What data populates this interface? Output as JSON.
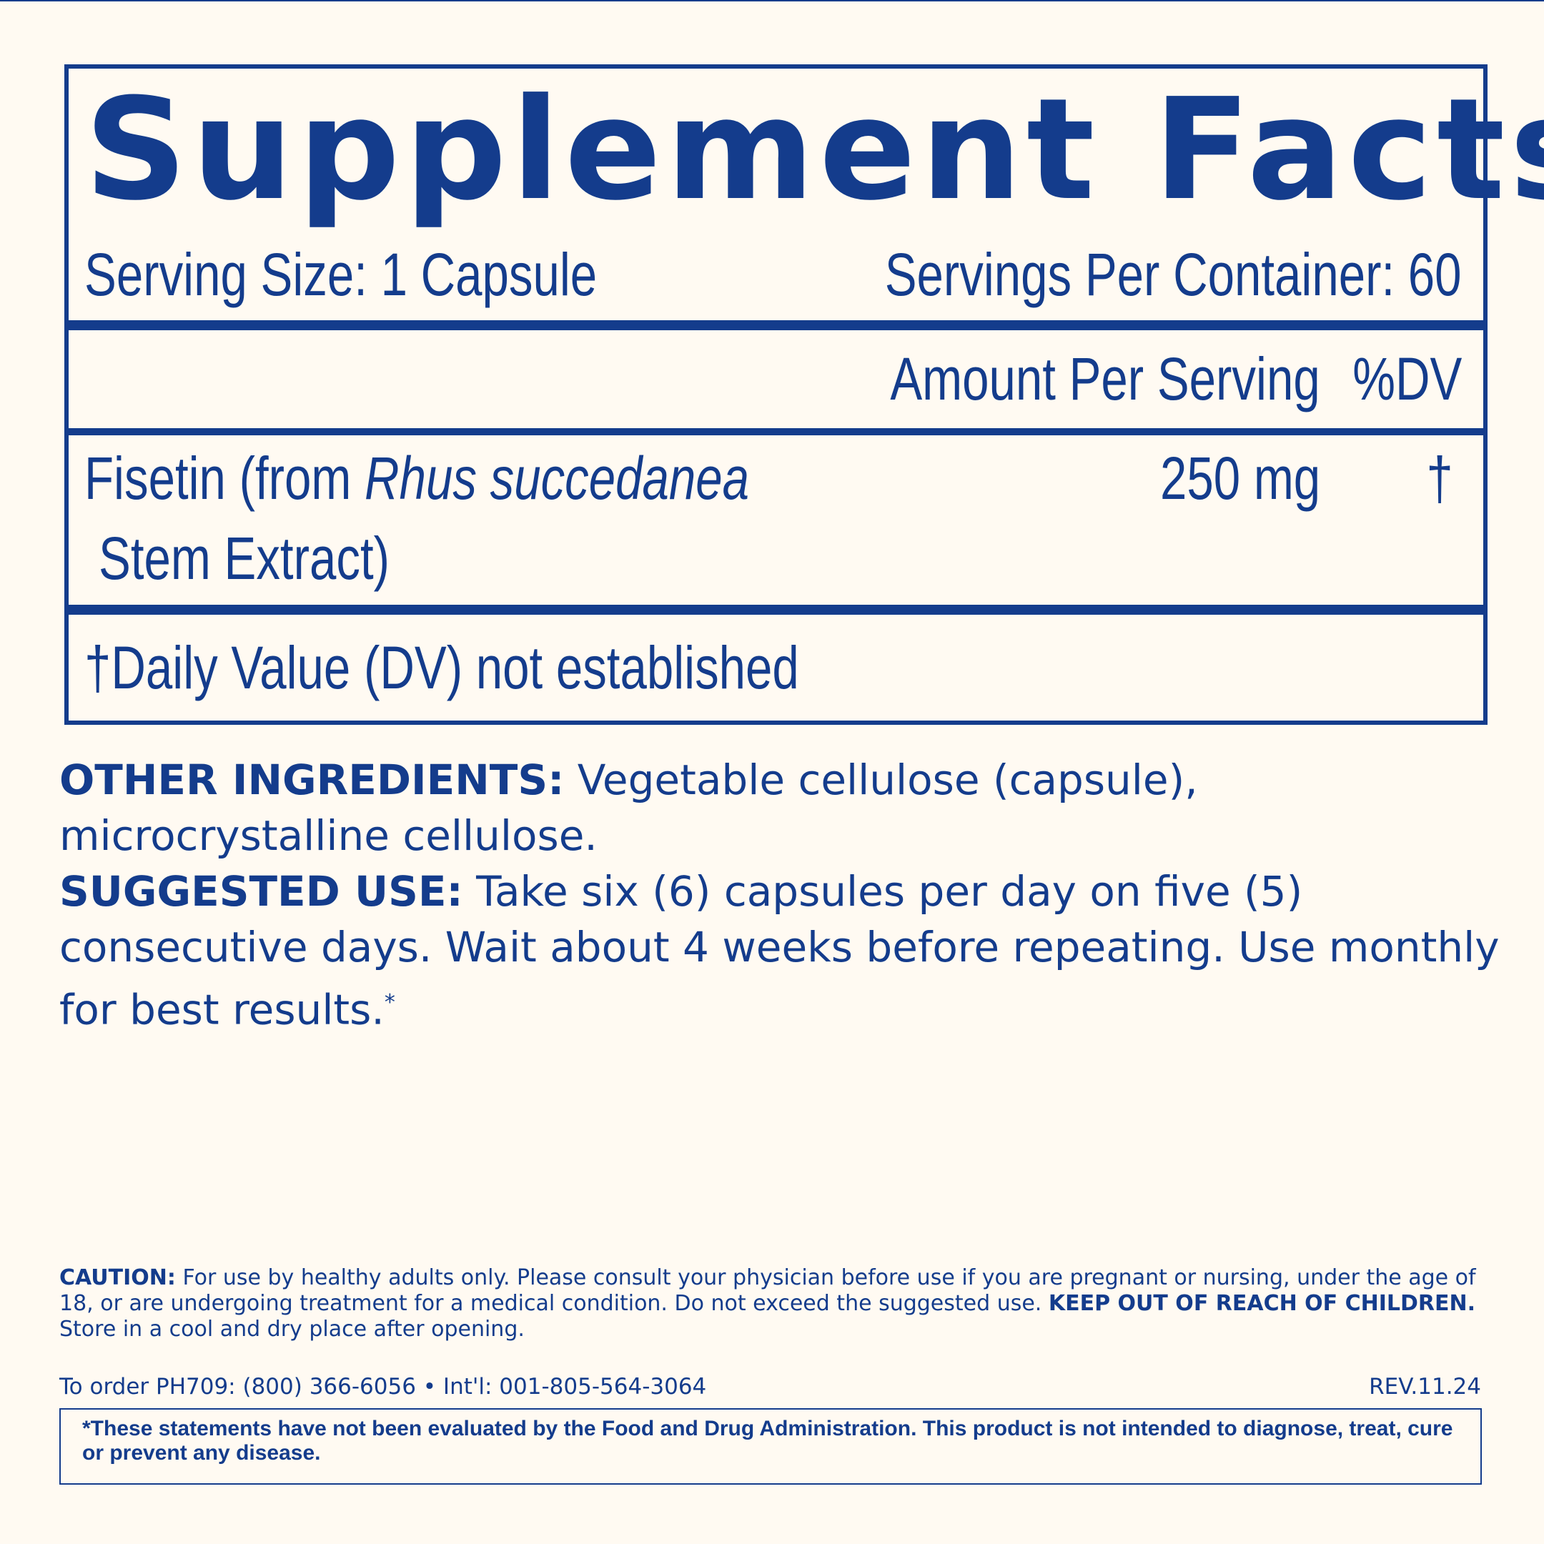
{
  "title": "Supplement Facts",
  "serving_size": "Serving Size: 1 Capsule",
  "servings_per_container": "Servings Per Container: 60",
  "header": {
    "amount": "Amount Per Serving",
    "dv": "%DV"
  },
  "ingredients": [
    {
      "name_prefix": "Fisetin (from ",
      "name_italic": "Rhus succedanea",
      "name_line2": "Stem Extract)",
      "amount": "250 mg",
      "dv": "†"
    }
  ],
  "footnote": "†Daily Value (DV) not established",
  "other_ingredients": {
    "label": "OTHER INGREDIENTS:",
    "text": " Vegetable cellulose (capsule), microcrystalline cellulose."
  },
  "suggested_use": {
    "label": "SUGGESTED USE:",
    "text": " Take six (6) capsules per day on five (5) consecutive days. Wait about 4 weeks before repeating. Use monthly for best results.",
    "mark": "*"
  },
  "caution": {
    "label": "CAUTION:",
    "text": " For use by healthy adults only. Please consult your physician before use if you are pregnant or nursing, under the age of 18, or are undergoing treatment for a medical condition. Do not exceed the suggested use. ",
    "bold": "KEEP OUT OF REACH OF CHILDREN.",
    "text2": " Store in a cool and dry place after opening."
  },
  "order": "To order PH709: (800) 366-6056 • Int'l: 001-805-564-3064",
  "revision": "REV.11.24",
  "disclaimer": "*These statements have not been evaluated by the Food and Drug Administration. This product is not intended to diagnose, treat, cure or prevent any disease.",
  "colors": {
    "ink": "#143c8c",
    "background": "#fffaf2"
  }
}
